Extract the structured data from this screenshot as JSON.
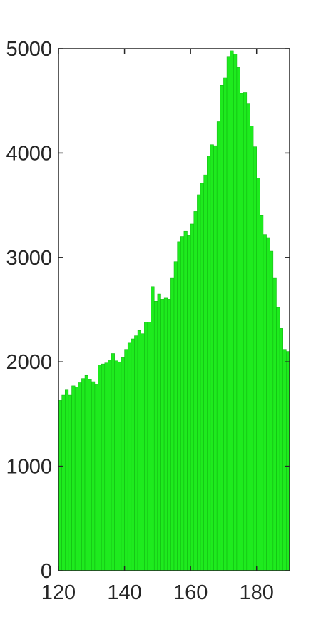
{
  "chart_data": {
    "type": "bar",
    "title": "",
    "xlabel": "",
    "ylabel": "",
    "xlim": [
      120,
      190
    ],
    "ylim": [
      0,
      5000
    ],
    "bar_color": "#1EEB1E",
    "edge_color": "#10B010",
    "axis_color": "#262626",
    "x_ticks": [
      120,
      140,
      160,
      180
    ],
    "x_tick_labels": [
      "120",
      "140",
      "160",
      "180"
    ],
    "y_ticks": [
      0,
      1000,
      2000,
      3000,
      4000,
      5000
    ],
    "y_tick_labels": [
      "0",
      "1000",
      "2000",
      "3000",
      "4000",
      "5000"
    ],
    "grid": false,
    "bin_start": 120,
    "bin_width": 1,
    "values": [
      1630,
      1680,
      1730,
      1680,
      1770,
      1760,
      1800,
      1840,
      1870,
      1830,
      1810,
      1780,
      1970,
      1980,
      1990,
      2020,
      2080,
      2010,
      2000,
      2040,
      2120,
      2180,
      2220,
      2250,
      2300,
      2270,
      2380,
      2380,
      2720,
      2580,
      2650,
      2600,
      2610,
      2600,
      2800,
      2960,
      3150,
      3200,
      3250,
      3210,
      3320,
      3440,
      3600,
      3710,
      3790,
      3970,
      4080,
      4070,
      4300,
      4650,
      4720,
      4920,
      4980,
      4950,
      4820,
      4570,
      4580,
      4470,
      4260,
      4060,
      3760,
      3400,
      3220,
      3190,
      3060,
      2800,
      2520,
      2320,
      2120,
      2100
    ]
  }
}
